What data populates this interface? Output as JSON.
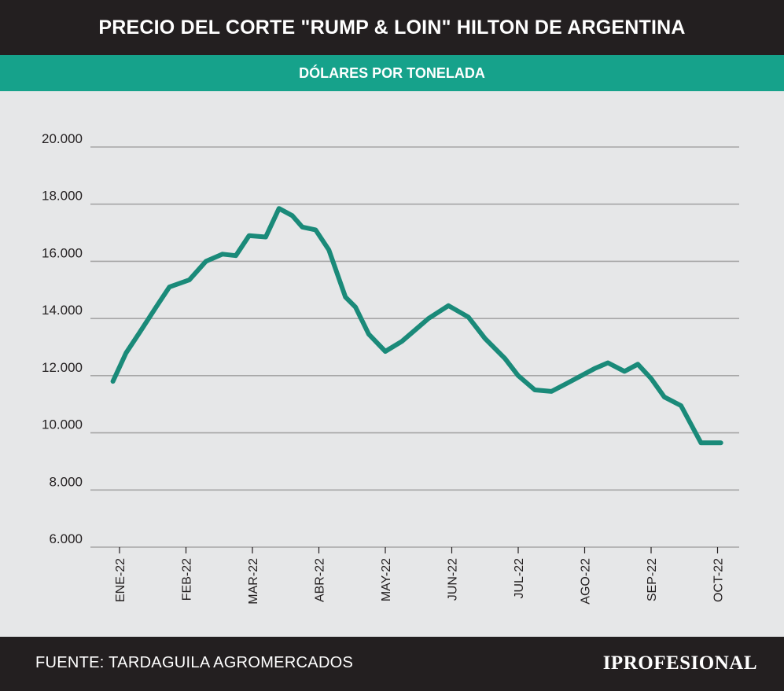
{
  "header": {
    "title": "PRECIO DEL CORTE \"RUMP & LOIN\" HILTON DE ARGENTINA"
  },
  "subheader": {
    "subtitle": "DÓLARES POR TONELADA"
  },
  "footer": {
    "source": "FUENTE: TARDAGUILA AGROMERCADOS",
    "logo": "IPROFESIONAL"
  },
  "colors": {
    "header_bg": "#231f20",
    "accent": "#16a28b",
    "line": "#1a8a79",
    "plot_bg": "#e6e7e8",
    "grid": "#a6a6a6"
  },
  "chart_data": {
    "type": "line",
    "title": "PRECIO DEL CORTE \"RUMP & LOIN\" HILTON DE ARGENTINA",
    "subtitle": "DÓLARES POR TONELADA",
    "xlabel": "",
    "ylabel": "",
    "ylim": [
      6000,
      20000
    ],
    "yticks": [
      20000,
      18000,
      16000,
      14000,
      12000,
      10000,
      8000,
      6000
    ],
    "ytick_labels": [
      "20.000",
      "18.000",
      "16.000",
      "14.000",
      "12.000",
      "10.000",
      "8.000",
      "6.000"
    ],
    "xlim": [
      0,
      9
    ],
    "xticks": [
      0,
      1,
      2,
      3,
      4,
      5,
      6,
      7,
      8,
      9
    ],
    "xtick_labels": [
      "ENE-22",
      "FEB-22",
      "MAR-22",
      "ABR-22",
      "MAY-22",
      "JUN-22",
      "JUL-22",
      "AGO-22",
      "SEP-22",
      "OCT-22"
    ],
    "grid": true,
    "legend": "none",
    "series": [
      {
        "x": [
          -0.1,
          0.1,
          0.3,
          0.55,
          0.75,
          1.05,
          1.3,
          1.55,
          1.75,
          1.95,
          2.2,
          2.4,
          2.6,
          2.75,
          2.95,
          3.15,
          3.4,
          3.55,
          3.75,
          4.0,
          4.25,
          4.45,
          4.65,
          4.95,
          5.25,
          5.5,
          5.8,
          6.0,
          6.25,
          6.5,
          6.75,
          7.15,
          7.35,
          7.6,
          7.8,
          8.0,
          8.2,
          8.45,
          8.75,
          9.05
        ],
        "y": [
          11800,
          12800,
          13500,
          14400,
          15100,
          15350,
          16000,
          16250,
          16200,
          16900,
          16850,
          17850,
          17600,
          17200,
          17100,
          16400,
          14750,
          14400,
          13450,
          12850,
          13200,
          13600,
          14000,
          14450,
          14050,
          13300,
          12600,
          12000,
          11500,
          11450,
          11750,
          12250,
          12450,
          12150,
          12400,
          11900,
          11250,
          10950,
          9650,
          9650
        ],
        "color": "#1a8a79"
      }
    ]
  }
}
